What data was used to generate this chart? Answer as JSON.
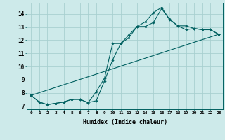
{
  "xlabel": "Humidex (Indice chaleur)",
  "xlim": [
    -0.5,
    23.5
  ],
  "ylim": [
    6.75,
    14.85
  ],
  "yticks": [
    7,
    8,
    9,
    10,
    11,
    12,
    13,
    14
  ],
  "xticks": [
    0,
    1,
    2,
    3,
    4,
    5,
    6,
    7,
    8,
    9,
    10,
    11,
    12,
    13,
    14,
    15,
    16,
    17,
    18,
    19,
    20,
    21,
    22,
    23
  ],
  "bg_color": "#cdeaea",
  "grid_color": "#a8d0d0",
  "line_color": "#006060",
  "line1_y": [
    7.8,
    7.3,
    7.1,
    7.2,
    7.3,
    7.5,
    7.5,
    7.25,
    8.1,
    9.1,
    11.75,
    11.75,
    12.2,
    13.05,
    13.05,
    13.35,
    14.4,
    13.6,
    13.1,
    12.8,
    12.9,
    12.8,
    12.8,
    12.45
  ],
  "line2_y": [
    7.8,
    7.3,
    7.1,
    7.2,
    7.3,
    7.5,
    7.5,
    7.25,
    7.4,
    8.9,
    10.5,
    11.75,
    12.4,
    13.05,
    13.4,
    14.1,
    14.5,
    13.55,
    13.1,
    13.1,
    12.9,
    12.8,
    12.8,
    12.45
  ],
  "line3_y": [
    7.8,
    null,
    null,
    null,
    null,
    null,
    null,
    null,
    null,
    null,
    null,
    null,
    null,
    null,
    null,
    null,
    null,
    null,
    null,
    null,
    null,
    null,
    null,
    12.45
  ],
  "marker_style": "D",
  "marker_size": 1.8,
  "line_width": 0.8
}
